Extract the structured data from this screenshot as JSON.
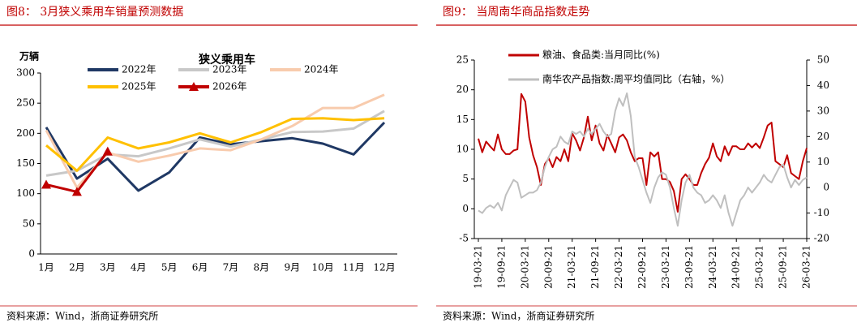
{
  "figures": [
    {
      "title": "图8：  3月狭义乘用车销量预测数据",
      "source": "资料来源：Wind，浙商证券研究所"
    },
    {
      "title": "图9：  当周南华商品指数走势",
      "source": "资料来源：Wind，浙商证券研究所"
    }
  ],
  "chart_data": [
    {
      "type": "line",
      "title": "狭义乘用车",
      "ylabel": "万辆",
      "categories": [
        "1月",
        "2月",
        "3月",
        "4月",
        "5月",
        "6月",
        "7月",
        "8月",
        "9月",
        "10月",
        "11月",
        "12月"
      ],
      "series": [
        {
          "name": "2022年",
          "color": "#1f3864",
          "values": [
            210,
            125,
            158,
            105,
            135,
            193,
            182,
            187,
            192,
            183,
            165,
            218
          ]
        },
        {
          "name": "2023年",
          "color": "#c8c8c8",
          "values": [
            130,
            138,
            165,
            162,
            175,
            190,
            178,
            190,
            202,
            203,
            208,
            237
          ]
        },
        {
          "name": "2024年",
          "color": "#f8cbad",
          "values": [
            205,
            110,
            168,
            153,
            163,
            175,
            172,
            190,
            212,
            242,
            242,
            264
          ]
        },
        {
          "name": "2025年",
          "color": "#ffc000",
          "values": [
            180,
            138,
            193,
            175,
            185,
            200,
            185,
            202,
            224,
            225,
            222,
            225
          ]
        },
        {
          "name": "2026年",
          "color": "#c00000",
          "marker": "triangle",
          "values": [
            115,
            103,
            170,
            null,
            null,
            null,
            null,
            null,
            null,
            null,
            null,
            null
          ]
        }
      ],
      "ylim": [
        0,
        300
      ],
      "yticks": [
        0,
        50,
        100,
        150,
        200,
        250,
        300
      ],
      "grid": false
    },
    {
      "type": "line",
      "x": [
        "19-03-21",
        "19-04-21",
        "19-05-21",
        "19-06-21",
        "19-07-21",
        "19-08-21",
        "19-09-21",
        "19-10-21",
        "19-11-21",
        "19-12-21",
        "20-01-21",
        "20-02-21",
        "20-03-21",
        "20-04-21",
        "20-05-21",
        "20-06-21",
        "20-07-21",
        "20-08-21",
        "20-09-21",
        "20-10-21",
        "20-11-21",
        "20-12-21",
        "21-01-21",
        "21-02-21",
        "21-03-21",
        "21-04-21",
        "21-05-21",
        "21-06-21",
        "21-07-21",
        "21-08-21",
        "21-09-21",
        "21-10-21",
        "21-11-21",
        "21-12-21",
        "22-01-21",
        "22-02-21",
        "22-03-21",
        "22-04-21",
        "22-05-21",
        "22-06-21",
        "22-07-21",
        "22-08-21",
        "22-09-21",
        "22-10-21",
        "22-11-21",
        "22-12-21",
        "23-01-21",
        "23-02-21",
        "23-03-21",
        "23-04-21",
        "23-05-21",
        "23-06-21",
        "23-07-21",
        "23-08-21",
        "23-09-21",
        "23-10-21",
        "23-11-21",
        "23-12-21",
        "24-01-21",
        "24-02-21",
        "24-03-21",
        "24-04-21",
        "24-05-21",
        "24-06-21",
        "24-07-21",
        "24-08-21",
        "24-09-21",
        "24-10-21",
        "24-11-21",
        "24-12-21",
        "25-01-21",
        "25-02-21",
        "25-03-21",
        "25-04-21",
        "25-05-21",
        "25-06-21",
        "25-07-21",
        "25-08-21",
        "25-09-21",
        "25-10-21",
        "25-11-21",
        "25-12-21",
        "26-01-21",
        "26-02-21",
        "26-03-21"
      ],
      "series": [
        {
          "name": "粮油、食品类:当月同比(%)",
          "color": "#c00000",
          "values": [
            11.8,
            9.5,
            11.3,
            10.5,
            9.8,
            12.5,
            10,
            9.2,
            9.2,
            9.8,
            10,
            19.3,
            18,
            12,
            9,
            7,
            4,
            7.5,
            8.5,
            7,
            8.7,
            8,
            10,
            8,
            12.7,
            11.5,
            9.8,
            12,
            15.5,
            11.5,
            14,
            11,
            9.8,
            12.4,
            11,
            9.5,
            12,
            12.5,
            11.5,
            9.5,
            8,
            8.5,
            8.5,
            4,
            9.5,
            8.8,
            9.5,
            5,
            5,
            4.5,
            3,
            -0.5,
            5,
            5.8,
            5,
            4,
            4,
            6,
            7.5,
            8.6,
            11,
            8.8,
            8,
            10.5,
            9,
            10.5,
            10.5,
            10,
            10,
            11,
            10.3,
            11,
            10.2,
            12,
            14,
            14.5,
            8,
            7.5,
            7,
            9,
            6,
            5.5,
            5,
            8,
            10.2
          ]
        },
        {
          "name": "南华农产品指数:周平均值同比（右轴，%）",
          "color": "#bfbfbf",
          "axis": "y2",
          "values": [
            -9,
            -10,
            -8,
            -7,
            -8,
            -6,
            -9,
            -3,
            0,
            3,
            2,
            -4,
            -3,
            -2,
            -2,
            -1,
            2,
            8,
            12,
            15,
            16,
            20,
            18,
            17,
            22,
            21,
            22,
            20,
            23,
            21,
            23,
            25,
            22,
            20,
            21,
            30,
            35,
            32,
            37,
            28,
            12,
            8,
            3,
            -2,
            -6,
            0,
            4,
            6,
            5,
            0,
            -8,
            -15,
            -5,
            2,
            5,
            0,
            -2,
            -3,
            -6,
            -5,
            -3,
            -5,
            -8,
            -3,
            -10,
            -15,
            -10,
            -5,
            -3,
            0,
            -2,
            0,
            2,
            5,
            3,
            2,
            5,
            8,
            9,
            4,
            0,
            3,
            1,
            3,
            4
          ]
        }
      ],
      "xlim": [
        "19-03-21",
        "26-03-21"
      ],
      "xticks": [
        "19-03-21",
        "19-09-21",
        "20-03-21",
        "20-09-21",
        "21-03-21",
        "21-09-21",
        "22-03-21",
        "22-09-21",
        "23-03-21",
        "23-09-21",
        "24-03-21",
        "24-09-21",
        "25-03-21",
        "25-09-21",
        "26-03-21"
      ],
      "ylim": [
        -5,
        25
      ],
      "yticks": [
        -5,
        0,
        5,
        10,
        15,
        20,
        25
      ],
      "y2lim": [
        -20,
        50
      ],
      "y2ticks": [
        -20,
        -10,
        0,
        10,
        20,
        30,
        40,
        50
      ],
      "grid": false
    }
  ]
}
